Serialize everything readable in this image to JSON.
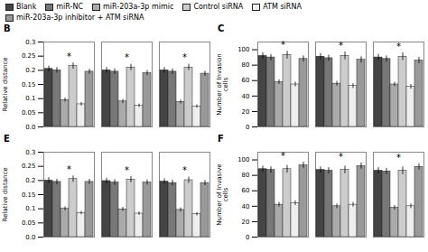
{
  "chart_data": [
    {
      "type": "bar",
      "title": "B",
      "ylabel": "Relative distance",
      "categories": [
        null,
        null,
        null
      ],
      "series": [
        {
          "name": "Blank",
          "color": "#444444",
          "values": [
            0.205,
            0.2,
            0.2
          ],
          "errors": [
            0.01,
            0.01,
            0.01
          ]
        },
        {
          "name": "miR-NC",
          "color": "#777777",
          "values": [
            0.2,
            0.195,
            0.195
          ],
          "errors": [
            0.01,
            0.01,
            0.01
          ]
        },
        {
          "name": "miR-203a-3p mimic",
          "color": "#aaaaaa",
          "values": [
            0.095,
            0.09,
            0.088
          ],
          "errors": [
            0.007,
            0.007,
            0.007
          ]
        },
        {
          "name": "Control siRNA",
          "color": "#cccccc",
          "values": [
            0.215,
            0.21,
            0.21
          ],
          "errors": [
            0.011,
            0.011,
            0.011
          ]
        },
        {
          "name": "ATM siRNA",
          "color": "#eeeeee",
          "values": [
            0.08,
            0.075,
            0.072
          ],
          "errors": [
            0.006,
            0.006,
            0.006
          ]
        },
        {
          "name": "miR-203a-3p inhibitor + ATM siRNA",
          "color": "#999999",
          "values": [
            0.195,
            0.19,
            0.188
          ],
          "errors": [
            0.009,
            0.009,
            0.009
          ]
        }
      ],
      "ylim": [
        0.0,
        0.3
      ],
      "yticks": [
        {
          "value": 0,
          "label": "0.0"
        },
        0.05,
        0.1,
        0.15,
        0.2,
        0.25,
        0.3
      ],
      "annotations": [
        {
          "text": "*",
          "category_index": 0
        },
        {
          "text": "*",
          "category_index": 1
        },
        {
          "text": "*",
          "category_index": 2
        }
      ]
    },
    {
      "type": "bar",
      "title": "C",
      "ylabel": "Number of Invasion\ncells",
      "categories": [
        null,
        null,
        null
      ],
      "series": [
        {
          "name": "Blank",
          "color": "#444444",
          "values": [
            92,
            91,
            90
          ],
          "errors": [
            4,
            4,
            4
          ]
        },
        {
          "name": "miR-NC",
          "color": "#777777",
          "values": [
            90,
            89,
            88
          ],
          "errors": [
            4,
            4,
            4
          ]
        },
        {
          "name": "miR-203a-3p mimic",
          "color": "#aaaaaa",
          "values": [
            58,
            56,
            55
          ],
          "errors": [
            3,
            3,
            3
          ]
        },
        {
          "name": "Control siRNA",
          "color": "#cccccc",
          "values": [
            93,
            92,
            91
          ],
          "errors": [
            5,
            5,
            5
          ]
        },
        {
          "name": "ATM siRNA",
          "color": "#eeeeee",
          "values": [
            55,
            53,
            52
          ],
          "errors": [
            3,
            3,
            3
          ]
        },
        {
          "name": "miR-203a-3p inhibitor + ATM siRNA",
          "color": "#999999",
          "values": [
            88,
            87,
            86
          ],
          "errors": [
            4,
            4,
            4
          ]
        }
      ],
      "ylim": [
        0,
        110
      ],
      "yticks": [
        0,
        20,
        40,
        60,
        80,
        100
      ],
      "annotations": [
        {
          "text": "*",
          "category_index": 0
        },
        {
          "text": "*",
          "category_index": 1
        },
        {
          "text": "*",
          "category_index": 2
        }
      ]
    },
    {
      "type": "bar",
      "title": "E",
      "ylabel": "Relative distance",
      "categories": [
        null,
        null,
        null
      ],
      "series": [
        {
          "name": "Blank",
          "color": "#444444",
          "values": [
            0.2,
            0.198,
            0.196
          ],
          "errors": [
            0.01,
            0.01,
            0.01
          ]
        },
        {
          "name": "miR-NC",
          "color": "#777777",
          "values": [
            0.195,
            0.193,
            0.191
          ],
          "errors": [
            0.01,
            0.01,
            0.01
          ]
        },
        {
          "name": "miR-203a-3p mimic",
          "color": "#aaaaaa",
          "values": [
            0.1,
            0.098,
            0.096
          ],
          "errors": [
            0.007,
            0.007,
            0.007
          ]
        },
        {
          "name": "Control siRNA",
          "color": "#cccccc",
          "values": [
            0.205,
            0.203,
            0.201
          ],
          "errors": [
            0.011,
            0.011,
            0.011
          ]
        },
        {
          "name": "ATM siRNA",
          "color": "#eeeeee",
          "values": [
            0.085,
            0.083,
            0.081
          ],
          "errors": [
            0.006,
            0.006,
            0.006
          ]
        },
        {
          "name": "miR-203a-3p inhibitor + ATM siRNA",
          "color": "#999999",
          "values": [
            0.195,
            0.193,
            0.191
          ],
          "errors": [
            0.009,
            0.009,
            0.009
          ]
        }
      ],
      "ylim": [
        0.0,
        0.3
      ],
      "yticks": [
        {
          "value": 0,
          "label": "0.0"
        },
        0.05,
        0.1,
        0.15,
        0.2,
        0.25,
        0.3
      ],
      "annotations": [
        {
          "text": "*",
          "category_index": 0
        },
        {
          "text": "*",
          "category_index": 1
        },
        {
          "text": "*",
          "category_index": 2
        }
      ]
    },
    {
      "type": "bar",
      "title": "F",
      "ylabel": "Number of Invasive\ncells",
      "categories": [
        null,
        null,
        null
      ],
      "series": [
        {
          "name": "Blank",
          "color": "#444444",
          "values": [
            88,
            87,
            86
          ],
          "errors": [
            4,
            4,
            4
          ]
        },
        {
          "name": "miR-NC",
          "color": "#777777",
          "values": [
            87,
            86,
            85
          ],
          "errors": [
            4,
            4,
            4
          ]
        },
        {
          "name": "miR-203a-3p mimic",
          "color": "#aaaaaa",
          "values": [
            42,
            40,
            38
          ],
          "errors": [
            3,
            3,
            3
          ]
        },
        {
          "name": "Control siRNA",
          "color": "#cccccc",
          "values": [
            88,
            87,
            86
          ],
          "errors": [
            5,
            5,
            5
          ]
        },
        {
          "name": "ATM siRNA",
          "color": "#eeeeee",
          "values": [
            44,
            42,
            40
          ],
          "errors": [
            3,
            3,
            3
          ]
        },
        {
          "name": "miR-203a-3p inhibitor + ATM siRNA",
          "color": "#999999",
          "values": [
            93,
            92,
            91
          ],
          "errors": [
            4,
            4,
            4
          ]
        }
      ],
      "ylim": [
        0,
        110
      ],
      "yticks": [
        0,
        20,
        40,
        60,
        80,
        100
      ],
      "annotations": [
        {
          "text": "*",
          "category_index": 0
        },
        {
          "text": "*",
          "category_index": 1
        },
        {
          "text": "*",
          "category_index": 2
        }
      ]
    }
  ]
}
